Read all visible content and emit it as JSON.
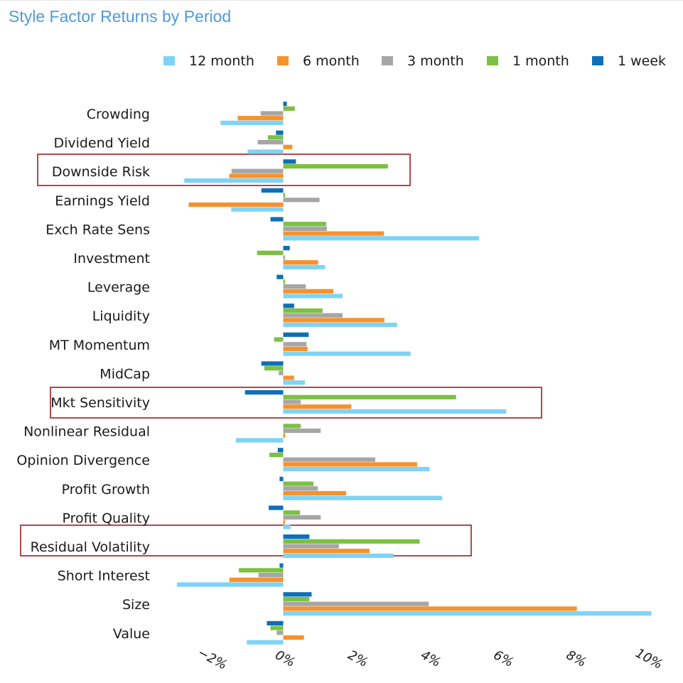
{
  "title": "Style Factor Returns by Period",
  "highlight_color": "#a01c22",
  "chart_data": {
    "type": "bar",
    "orientation": "horizontal",
    "title": "Style Factor Returns by Period",
    "xlabel": "",
    "ylabel": "",
    "xlim": [
      -3,
      10.3
    ],
    "x_ticks": [
      -2,
      0,
      2,
      4,
      6,
      8,
      10
    ],
    "x_tick_labels": [
      "−2%",
      "0%",
      "2%",
      "4%",
      "6%",
      "8%",
      "10%"
    ],
    "legend_position": "top",
    "grid": false,
    "categories": [
      "Crowding",
      "Dividend Yield",
      "Downside Risk",
      "Earnings Yield",
      "Exch Rate Sens",
      "Investment",
      "Leverage",
      "Liquidity",
      "MT Momentum",
      "MidCap",
      "Mkt Sensitivity",
      "Nonlinear Residual",
      "Opinion Divergence",
      "Profit Growth",
      "Profit Quality",
      "Residual Volatility",
      "Short Interest",
      "Size",
      "Value"
    ],
    "highlighted": [
      "Downside Risk",
      "Mkt Sensitivity",
      "Residual Volatility"
    ],
    "series": [
      {
        "name": "1 week",
        "color": "#0f6fb8",
        "values": [
          0.1,
          -0.2,
          0.35,
          -0.6,
          -0.35,
          0.18,
          -0.18,
          0.3,
          0.7,
          -0.6,
          -1.05,
          0.0,
          -0.15,
          -0.1,
          -0.4,
          0.72,
          -0.1,
          0.78,
          -0.45
        ]
      },
      {
        "name": "1 month",
        "color": "#7cc142",
        "values": [
          0.32,
          -0.42,
          2.88,
          0.05,
          1.18,
          -0.72,
          0.05,
          1.08,
          -0.25,
          -0.52,
          4.75,
          0.48,
          -0.38,
          0.83,
          0.46,
          3.75,
          -1.22,
          0.72,
          -0.35
        ]
      },
      {
        "name": "3 month",
        "color": "#a6a6a6",
        "values": [
          -0.62,
          -0.7,
          -1.42,
          1.0,
          1.2,
          0.05,
          0.62,
          1.63,
          0.64,
          -0.12,
          0.48,
          1.03,
          2.53,
          0.95,
          1.03,
          1.53,
          -0.68,
          4.0,
          -0.18
        ]
      },
      {
        "name": "6 month",
        "color": "#f7922a",
        "values": [
          -1.25,
          0.25,
          -1.48,
          -2.6,
          2.77,
          0.96,
          1.38,
          2.78,
          0.67,
          0.3,
          1.87,
          0.05,
          3.68,
          1.73,
          0.05,
          2.37,
          -1.48,
          8.07,
          0.57
        ]
      },
      {
        "name": "12 month",
        "color": "#7fd3f5",
        "values": [
          -1.72,
          -0.98,
          -2.72,
          -1.43,
          5.38,
          1.15,
          1.63,
          3.13,
          3.5,
          0.6,
          6.13,
          -1.3,
          4.02,
          4.37,
          0.2,
          3.03,
          -2.92,
          10.12,
          -1.0
        ]
      }
    ]
  },
  "legend": [
    {
      "label": "12 month",
      "color": "#7fd3f5"
    },
    {
      "label": "6 month",
      "color": "#f7922a"
    },
    {
      "label": "3 month",
      "color": "#a6a6a6"
    },
    {
      "label": "1 month",
      "color": "#7cc142"
    },
    {
      "label": "1 week",
      "color": "#0f6fb8"
    }
  ]
}
